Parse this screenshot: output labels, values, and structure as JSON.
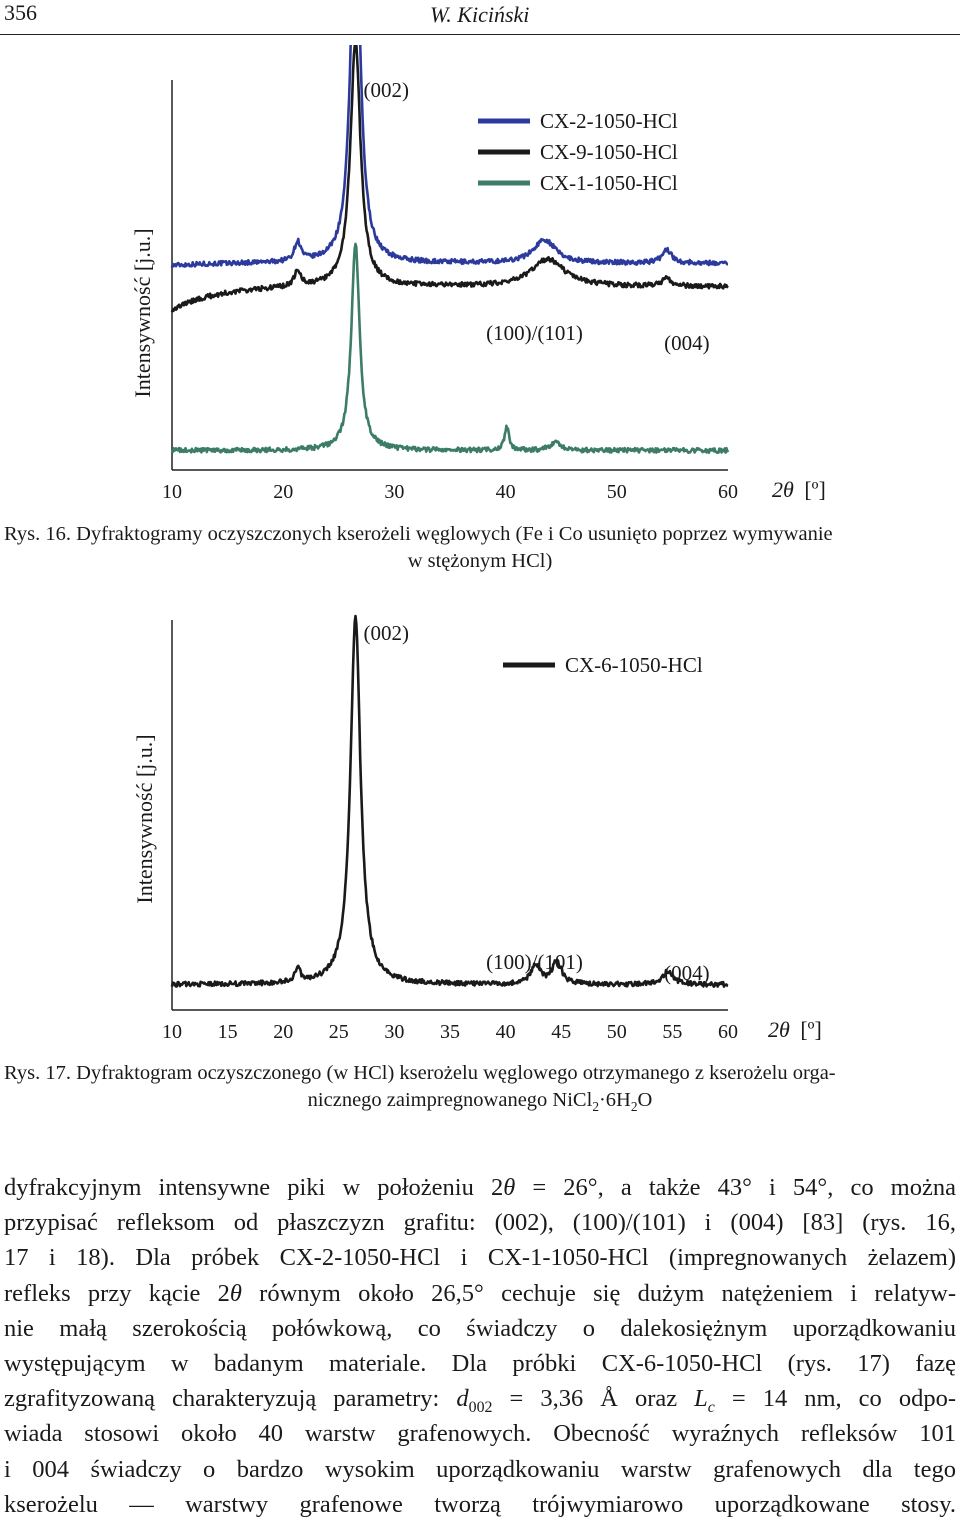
{
  "header": {
    "page_number": "356",
    "author": "W. Kiciński"
  },
  "figure16": {
    "caption_line1": "Rys. 16. Dyfraktogramy oczyszczonych kserożeli węglowych (Fe i Co usunięto poprzez wymywanie",
    "caption_line2": "w stężonym HCl)"
  },
  "figure17": {
    "caption_line1": "Rys. 17. Dyfraktogram oczyszczonego (w HCl) kserożelu węglowego otrzymanego z kserożelu orga-",
    "caption_line2_pre": "nicznego zaimpregnowanego NiCl",
    "caption_sub1": "2",
    "caption_mid": "·6H",
    "caption_sub2": "2",
    "caption_post": "O"
  },
  "chart_data": [
    {
      "type": "line",
      "ylabel": "Intensywność [j.u.]",
      "xlabel_symbol": "2θ",
      "xlabel_unit": "[º]",
      "xlim": [
        10,
        60
      ],
      "xticks": [
        "10",
        "20",
        "30",
        "40",
        "50",
        "60"
      ],
      "annotations": [
        {
          "text": "(002)",
          "x": 26.5
        },
        {
          "text": "(100)/(101)",
          "x": 43.5
        },
        {
          "text": "(004)",
          "x": 54.5
        }
      ],
      "legend_position": "top-right",
      "series": [
        {
          "name": "CX-2-1050-HCl",
          "color": "#2b3a9c",
          "baseline": 0.53,
          "slope": -0.03,
          "peaks": [
            [
              26.5,
              0.98,
              0.5
            ],
            [
              21.3,
              0.05,
              0.35
            ],
            [
              43.5,
              0.06,
              1.2
            ],
            [
              54.5,
              0.035,
              0.5
            ]
          ]
        },
        {
          "name": "CX-9-1050-HCl",
          "color": "#1a1a1a",
          "baseline": 0.47,
          "slope": -0.3,
          "peaks": [
            [
              26.5,
              0.63,
              0.55
            ],
            [
              21.3,
              0.04,
              0.35
            ],
            [
              43.8,
              0.07,
              1.8
            ],
            [
              54.5,
              0.02,
              0.5
            ]
          ]
        },
        {
          "name": "CX-1-1050-HCl",
          "color": "#3d7c66",
          "baseline": 0.05,
          "slope": 0.0,
          "peaks": [
            [
              26.5,
              0.53,
              0.45
            ],
            [
              40.1,
              0.06,
              0.25
            ],
            [
              44.5,
              0.02,
              0.6
            ]
          ]
        }
      ]
    },
    {
      "type": "line",
      "ylabel": "Intensywność [j.u.]",
      "xlabel_symbol": "2θ",
      "xlabel_unit": "[º]",
      "xlim": [
        10,
        60
      ],
      "xticks": [
        "10",
        "15",
        "20",
        "25",
        "30",
        "35",
        "40",
        "45",
        "50",
        "55",
        "60"
      ],
      "annotations": [
        {
          "text": "(002)",
          "x": 26.5
        },
        {
          "text": "(100)/(101)",
          "x": 43.5
        },
        {
          "text": "(004)",
          "x": 54.5
        }
      ],
      "legend_position": "top-right",
      "series": [
        {
          "name": "CX-6-1050-HCl",
          "color": "#1a1a1a",
          "baseline": 0.065,
          "slope": 0.0,
          "peaks": [
            [
              26.5,
              0.94,
              0.55
            ],
            [
              21.3,
              0.035,
              0.3
            ],
            [
              42.7,
              0.05,
              0.5
            ],
            [
              44.6,
              0.06,
              0.5
            ],
            [
              54.6,
              0.035,
              0.55
            ]
          ]
        }
      ]
    }
  ],
  "body": {
    "l1_a": "dyfrakcyjnym intensywne piki w położeniu 2",
    "l1_theta": "θ",
    "l1_b": " = 26°, a także 43° i 54°, co można",
    "l2": "przypisać refleksom od płaszczyzn grafitu: (002), (100)/(101) i (004) [83] (rys. 16,",
    "l3": "17 i 18). Dla próbek CX-2-1050-HCl i CX-1-1050-HCl (impregnowanych żelazem)",
    "l4_a": "refleks przy kącie 2",
    "l4_theta": "θ",
    "l4_b": " równym około 26,5° cechuje się dużym natężeniem i relatyw-",
    "l5": "nie małą szerokością połówkową, co świadczy o dalekosiężnym uporządkowaniu",
    "l6": "występującym w badanym materiale. Dla próbki CX-6-1050-HCl (rys. 17) fazę",
    "l7_a": "zgrafityzowaną charakteryzują parametry: ",
    "l7_d": "d",
    "l7_dsub": "002",
    "l7_b": " = 3,36 Å oraz ",
    "l7_L": "L",
    "l7_Lsub": "c",
    "l7_c": " = 14 nm, co odpo-",
    "l8": "wiada stosowi około 40 warstw grafenowych. Obecność wyraźnych refleksów 101",
    "l9": "i 004 świadczy o bardzo wysokim uporządkowaniu warstw grafenowych dla tego",
    "l10": "kserożelu — warstwy grafenowe tworzą trójwymiarowo uporządkowane stosy."
  }
}
